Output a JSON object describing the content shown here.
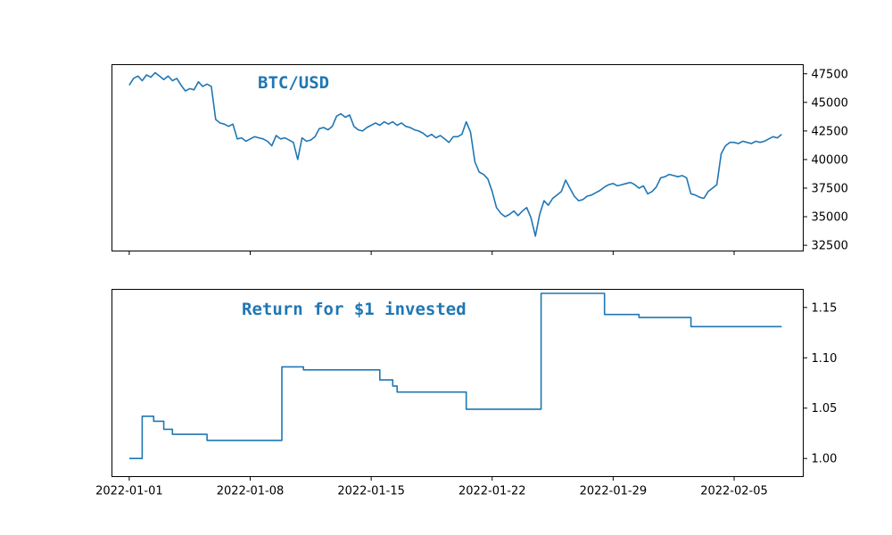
{
  "chart_data": [
    {
      "type": "line",
      "title": "BTC/USD",
      "xlabel": "",
      "ylabel": "",
      "y_axis_side": "right",
      "ylim": [
        32000,
        48300
      ],
      "yticks": [
        32500,
        35000,
        37500,
        40000,
        42500,
        45000,
        47500
      ],
      "ytick_labels": [
        "32500",
        "35000",
        "37500",
        "40000",
        "42500",
        "45000",
        "47500"
      ],
      "xlim": [
        "2021-12-31T00:00",
        "2022-02-09T00:00"
      ],
      "xticks": [
        "2022-01-01",
        "2022-01-08",
        "2022-01-15",
        "2022-01-22",
        "2022-01-29",
        "2022-02-05"
      ],
      "xtick_labels_shown": false,
      "grid": false,
      "color": "#1f77b4",
      "series": [
        {
          "values": [
            [
              "2022-01-01T00:00",
              46500
            ],
            [
              "2022-01-01T06:00",
              47100
            ],
            [
              "2022-01-01T12:00",
              47300
            ],
            [
              "2022-01-01T18:00",
              46900
            ],
            [
              "2022-01-02T00:00",
              47400
            ],
            [
              "2022-01-02T06:00",
              47200
            ],
            [
              "2022-01-02T12:00",
              47600
            ],
            [
              "2022-01-02T18:00",
              47300
            ],
            [
              "2022-01-03T00:00",
              47000
            ],
            [
              "2022-01-03T06:00",
              47300
            ],
            [
              "2022-01-03T12:00",
              46900
            ],
            [
              "2022-01-03T18:00",
              47100
            ],
            [
              "2022-01-04T00:00",
              46500
            ],
            [
              "2022-01-04T06:00",
              46000
            ],
            [
              "2022-01-04T12:00",
              46200
            ],
            [
              "2022-01-04T18:00",
              46100
            ],
            [
              "2022-01-05T00:00",
              46800
            ],
            [
              "2022-01-05T06:00",
              46400
            ],
            [
              "2022-01-05T12:00",
              46600
            ],
            [
              "2022-01-05T18:00",
              46400
            ],
            [
              "2022-01-06T00:00",
              43500
            ],
            [
              "2022-01-06T06:00",
              43200
            ],
            [
              "2022-01-06T12:00",
              43100
            ],
            [
              "2022-01-06T18:00",
              42900
            ],
            [
              "2022-01-07T00:00",
              43100
            ],
            [
              "2022-01-07T06:00",
              41800
            ],
            [
              "2022-01-07T12:00",
              41900
            ],
            [
              "2022-01-07T18:00",
              41600
            ],
            [
              "2022-01-08T00:00",
              41800
            ],
            [
              "2022-01-08T06:00",
              42000
            ],
            [
              "2022-01-08T12:00",
              41900
            ],
            [
              "2022-01-08T18:00",
              41800
            ],
            [
              "2022-01-09T00:00",
              41600
            ],
            [
              "2022-01-09T06:00",
              41200
            ],
            [
              "2022-01-09T12:00",
              42100
            ],
            [
              "2022-01-09T18:00",
              41800
            ],
            [
              "2022-01-10T00:00",
              41900
            ],
            [
              "2022-01-10T06:00",
              41700
            ],
            [
              "2022-01-10T12:00",
              41500
            ],
            [
              "2022-01-10T18:00",
              40000
            ],
            [
              "2022-01-11T00:00",
              41900
            ],
            [
              "2022-01-11T06:00",
              41600
            ],
            [
              "2022-01-11T12:00",
              41700
            ],
            [
              "2022-01-11T18:00",
              42000
            ],
            [
              "2022-01-12T00:00",
              42700
            ],
            [
              "2022-01-12T06:00",
              42800
            ],
            [
              "2022-01-12T12:00",
              42600
            ],
            [
              "2022-01-12T18:00",
              42900
            ],
            [
              "2022-01-13T00:00",
              43800
            ],
            [
              "2022-01-13T06:00",
              44000
            ],
            [
              "2022-01-13T12:00",
              43700
            ],
            [
              "2022-01-13T18:00",
              43900
            ],
            [
              "2022-01-14T00:00",
              42900
            ],
            [
              "2022-01-14T06:00",
              42600
            ],
            [
              "2022-01-14T12:00",
              42500
            ],
            [
              "2022-01-14T18:00",
              42800
            ],
            [
              "2022-01-15T00:00",
              43000
            ],
            [
              "2022-01-15T06:00",
              43200
            ],
            [
              "2022-01-15T12:00",
              43000
            ],
            [
              "2022-01-15T18:00",
              43300
            ],
            [
              "2022-01-16T00:00",
              43100
            ],
            [
              "2022-01-16T06:00",
              43300
            ],
            [
              "2022-01-16T12:00",
              43000
            ],
            [
              "2022-01-16T18:00",
              43200
            ],
            [
              "2022-01-17T00:00",
              42900
            ],
            [
              "2022-01-17T06:00",
              42800
            ],
            [
              "2022-01-17T12:00",
              42600
            ],
            [
              "2022-01-17T18:00",
              42500
            ],
            [
              "2022-01-18T00:00",
              42300
            ],
            [
              "2022-01-18T06:00",
              42000
            ],
            [
              "2022-01-18T12:00",
              42200
            ],
            [
              "2022-01-18T18:00",
              41900
            ],
            [
              "2022-01-19T00:00",
              42100
            ],
            [
              "2022-01-19T06:00",
              41800
            ],
            [
              "2022-01-19T12:00",
              41500
            ],
            [
              "2022-01-19T18:00",
              42000
            ],
            [
              "2022-01-20T00:00",
              42000
            ],
            [
              "2022-01-20T06:00",
              42200
            ],
            [
              "2022-01-20T12:00",
              43300
            ],
            [
              "2022-01-20T18:00",
              42400
            ],
            [
              "2022-01-21T00:00",
              39800
            ],
            [
              "2022-01-21T06:00",
              38900
            ],
            [
              "2022-01-21T12:00",
              38700
            ],
            [
              "2022-01-21T18:00",
              38300
            ],
            [
              "2022-01-22T00:00",
              37200
            ],
            [
              "2022-01-22T06:00",
              35800
            ],
            [
              "2022-01-22T12:00",
              35300
            ],
            [
              "2022-01-22T18:00",
              35000
            ],
            [
              "2022-01-23T00:00",
              35200
            ],
            [
              "2022-01-23T06:00",
              35500
            ],
            [
              "2022-01-23T12:00",
              35100
            ],
            [
              "2022-01-23T18:00",
              35500
            ],
            [
              "2022-01-24T00:00",
              35800
            ],
            [
              "2022-01-24T06:00",
              34900
            ],
            [
              "2022-01-24T12:00",
              33300
            ],
            [
              "2022-01-24T18:00",
              35200
            ],
            [
              "2022-01-25T00:00",
              36400
            ],
            [
              "2022-01-25T06:00",
              36000
            ],
            [
              "2022-01-25T12:00",
              36600
            ],
            [
              "2022-01-25T18:00",
              36900
            ],
            [
              "2022-01-26T00:00",
              37200
            ],
            [
              "2022-01-26T06:00",
              38200
            ],
            [
              "2022-01-26T12:00",
              37500
            ],
            [
              "2022-01-26T18:00",
              36800
            ],
            [
              "2022-01-27T00:00",
              36400
            ],
            [
              "2022-01-27T06:00",
              36500
            ],
            [
              "2022-01-27T12:00",
              36800
            ],
            [
              "2022-01-27T18:00",
              36900
            ],
            [
              "2022-01-28T00:00",
              37100
            ],
            [
              "2022-01-28T06:00",
              37300
            ],
            [
              "2022-01-28T12:00",
              37600
            ],
            [
              "2022-01-28T18:00",
              37800
            ],
            [
              "2022-01-29T00:00",
              37900
            ],
            [
              "2022-01-29T06:00",
              37700
            ],
            [
              "2022-01-29T12:00",
              37800
            ],
            [
              "2022-01-29T18:00",
              37900
            ],
            [
              "2022-01-30T00:00",
              38000
            ],
            [
              "2022-01-30T06:00",
              37800
            ],
            [
              "2022-01-30T12:00",
              37500
            ],
            [
              "2022-01-30T18:00",
              37700
            ],
            [
              "2022-01-31T00:00",
              37000
            ],
            [
              "2022-01-31T06:00",
              37200
            ],
            [
              "2022-01-31T12:00",
              37600
            ],
            [
              "2022-01-31T18:00",
              38400
            ],
            [
              "2022-02-01T00:00",
              38500
            ],
            [
              "2022-02-01T06:00",
              38700
            ],
            [
              "2022-02-01T12:00",
              38600
            ],
            [
              "2022-02-01T18:00",
              38500
            ],
            [
              "2022-02-02T00:00",
              38600
            ],
            [
              "2022-02-02T06:00",
              38400
            ],
            [
              "2022-02-02T12:00",
              37000
            ],
            [
              "2022-02-02T18:00",
              36900
            ],
            [
              "2022-02-03T00:00",
              36700
            ],
            [
              "2022-02-03T06:00",
              36600
            ],
            [
              "2022-02-03T12:00",
              37200
            ],
            [
              "2022-02-03T18:00",
              37500
            ],
            [
              "2022-02-04T00:00",
              37800
            ],
            [
              "2022-02-04T06:00",
              40500
            ],
            [
              "2022-02-04T12:00",
              41200
            ],
            [
              "2022-02-04T18:00",
              41500
            ],
            [
              "2022-02-05T00:00",
              41500
            ],
            [
              "2022-02-05T06:00",
              41400
            ],
            [
              "2022-02-05T12:00",
              41600
            ],
            [
              "2022-02-05T18:00",
              41500
            ],
            [
              "2022-02-06T00:00",
              41400
            ],
            [
              "2022-02-06T06:00",
              41600
            ],
            [
              "2022-02-06T12:00",
              41500
            ],
            [
              "2022-02-06T18:00",
              41600
            ],
            [
              "2022-02-07T00:00",
              41800
            ],
            [
              "2022-02-07T06:00",
              42000
            ],
            [
              "2022-02-07T12:00",
              41900
            ],
            [
              "2022-02-07T18:00",
              42200
            ]
          ]
        }
      ]
    },
    {
      "type": "line",
      "step": "post",
      "title": "Return for $1 invested",
      "xlabel": "",
      "ylabel": "",
      "y_axis_side": "right",
      "ylim": [
        0.982,
        1.168
      ],
      "yticks": [
        1.0,
        1.05,
        1.1,
        1.15
      ],
      "ytick_labels": [
        "1.00",
        "1.05",
        "1.10",
        "1.15"
      ],
      "xlim": [
        "2021-12-31T00:00",
        "2022-02-09T00:00"
      ],
      "xticks": [
        "2022-01-01",
        "2022-01-08",
        "2022-01-15",
        "2022-01-22",
        "2022-01-29",
        "2022-02-05"
      ],
      "xtick_labels": [
        "2022-01-01",
        "2022-01-08",
        "2022-01-15",
        "2022-01-22",
        "2022-01-29",
        "2022-02-05"
      ],
      "grid": false,
      "color": "#1f77b4",
      "series": [
        {
          "values": [
            [
              "2022-01-01T00:00",
              1.0
            ],
            [
              "2022-01-01T18:00",
              1.042
            ],
            [
              "2022-01-02T10:00",
              1.037
            ],
            [
              "2022-01-03T00:00",
              1.029
            ],
            [
              "2022-01-03T12:00",
              1.024
            ],
            [
              "2022-01-05T12:00",
              1.018
            ],
            [
              "2022-01-09T20:00",
              1.091
            ],
            [
              "2022-01-11T02:00",
              1.088
            ],
            [
              "2022-01-15T12:00",
              1.078
            ],
            [
              "2022-01-16T06:00",
              1.072
            ],
            [
              "2022-01-16T12:00",
              1.066
            ],
            [
              "2022-01-20T12:00",
              1.049
            ],
            [
              "2022-01-24T20:00",
              1.164
            ],
            [
              "2022-01-28T12:00",
              1.143
            ],
            [
              "2022-01-30T12:00",
              1.14
            ],
            [
              "2022-02-02T12:00",
              1.131
            ],
            [
              "2022-02-07T18:00",
              1.131
            ]
          ]
        }
      ]
    }
  ]
}
